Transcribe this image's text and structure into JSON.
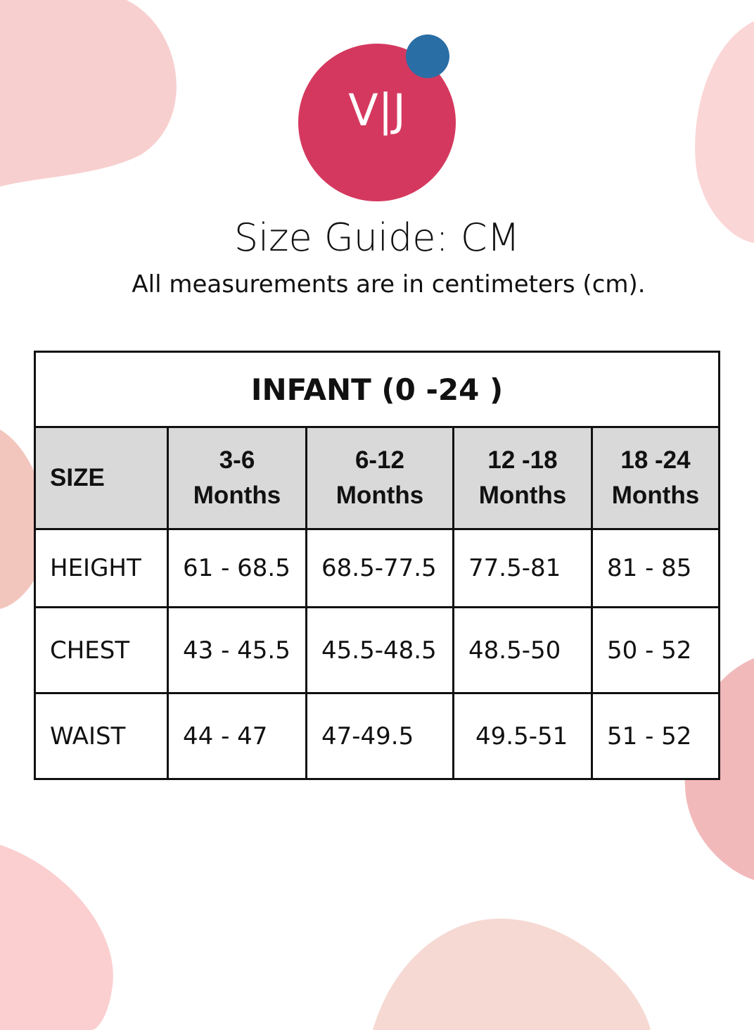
{
  "logo": {
    "text": "V|J",
    "colors": {
      "circle": "#d5385e",
      "dot": "#2a6ea6"
    }
  },
  "title": "Size Guide: CM",
  "subtitle": "All measurements are in centimeters (cm).",
  "table": {
    "caption": "INFANT (0 -24 )",
    "headers": [
      "SIZE",
      "3-6 Months",
      "6-12 Months",
      "12 -18 Months",
      "18 -24 Months"
    ],
    "rows": [
      {
        "label": "HEIGHT",
        "values": [
          "61 - 68.5",
          "68.5-77.5",
          "77.5-81",
          "81 - 85"
        ]
      },
      {
        "label": "CHEST",
        "values": [
          "43 - 45.5",
          "45.5-48.5",
          "48.5-50",
          "50 - 52"
        ]
      },
      {
        "label": "WAIST",
        "values": [
          "44 - 47",
          "47-49.5",
          "49.5-51",
          "51 - 52"
        ]
      }
    ]
  }
}
